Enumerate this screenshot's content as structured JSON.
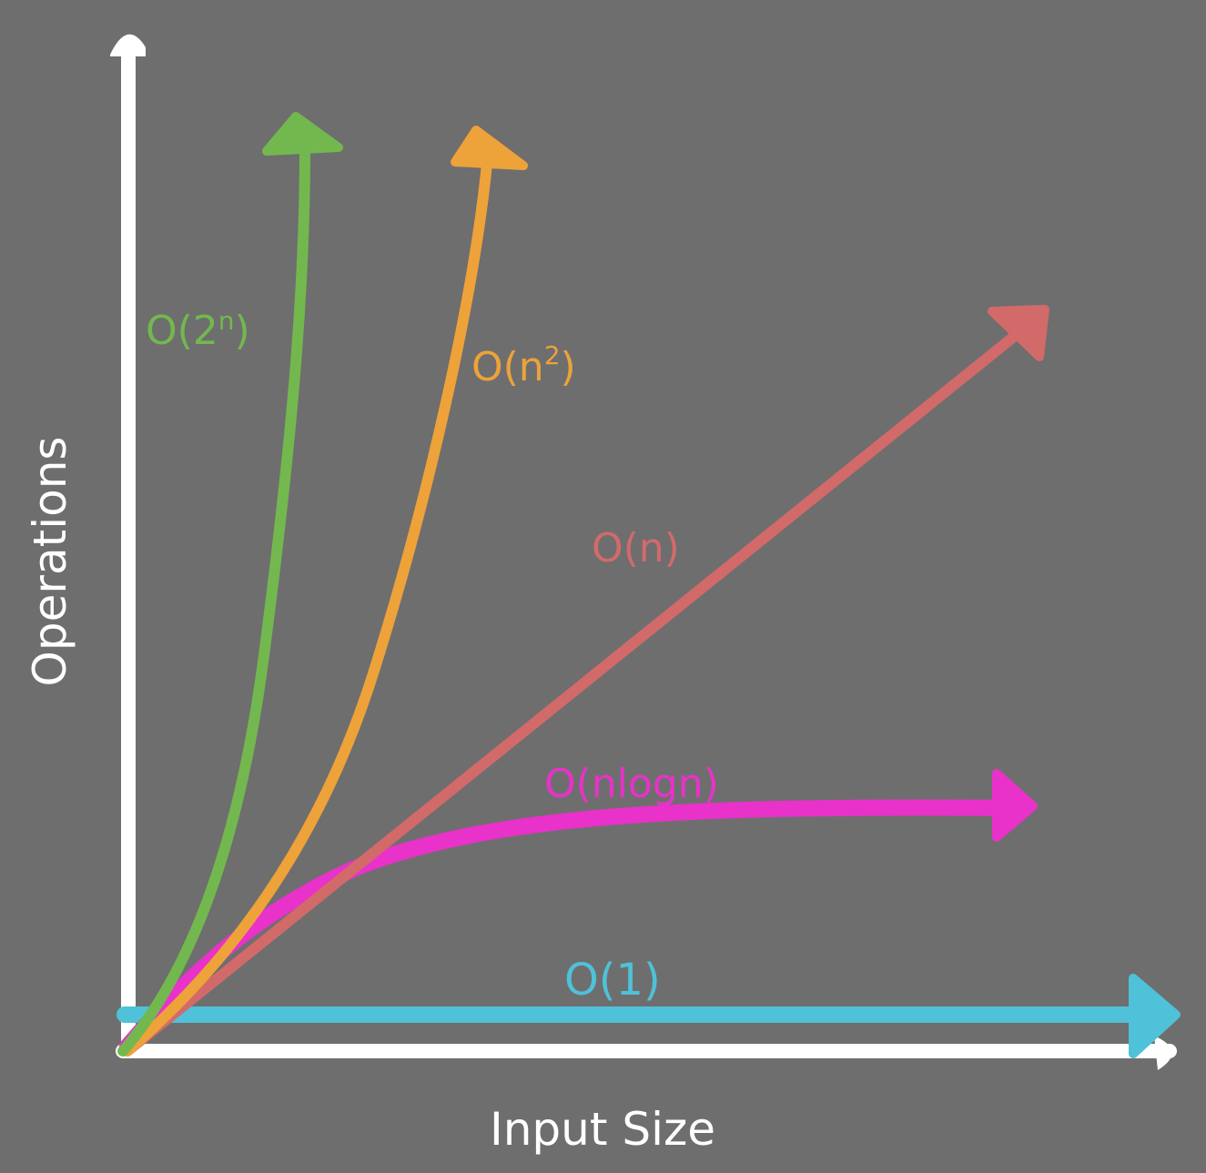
{
  "background": "#6e6e6e",
  "axes": {
    "color": "#ffffff",
    "x_label": "Input Size",
    "y_label": "Operations"
  },
  "curves": {
    "o1": {
      "label": "O(1)",
      "color": "#4fc1d8"
    },
    "ologn_n": {
      "label": "O(nlogn)",
      "color": "#e832c9"
    },
    "on": {
      "label": "O(n)",
      "color": "#d26a6a"
    },
    "on2": {
      "label": "O(n",
      "sup": "2",
      "close": ")",
      "color": "#eea23a"
    },
    "o2n": {
      "label": "O(2",
      "sup": "n",
      "close": ")",
      "color": "#72b84e"
    }
  }
}
